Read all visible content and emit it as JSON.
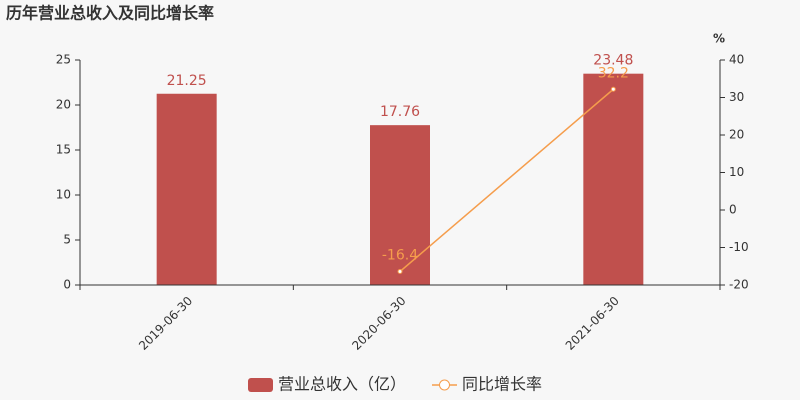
{
  "chart_data": {
    "type": "bar",
    "title": "历年营业总收入及同比增长率",
    "categories": [
      "2019-06-30",
      "2020-06-30",
      "2021-06-30"
    ],
    "series": [
      {
        "name": "营业总收入（亿）",
        "type": "bar",
        "color": "#c0504d",
        "values": [
          21.25,
          17.76,
          23.48
        ]
      },
      {
        "name": "同比增长率",
        "type": "line",
        "axis": "y2",
        "color": "#f59d4c",
        "values": [
          null,
          -16.4,
          32.2
        ]
      }
    ],
    "ylim": [
      0,
      25
    ],
    "yticks": [
      0,
      5,
      10,
      15,
      20,
      25
    ],
    "y2label": "%",
    "y2lim": [
      -20,
      40
    ],
    "y2ticks": [
      -20,
      -10,
      0,
      10,
      20,
      30,
      40
    ]
  }
}
